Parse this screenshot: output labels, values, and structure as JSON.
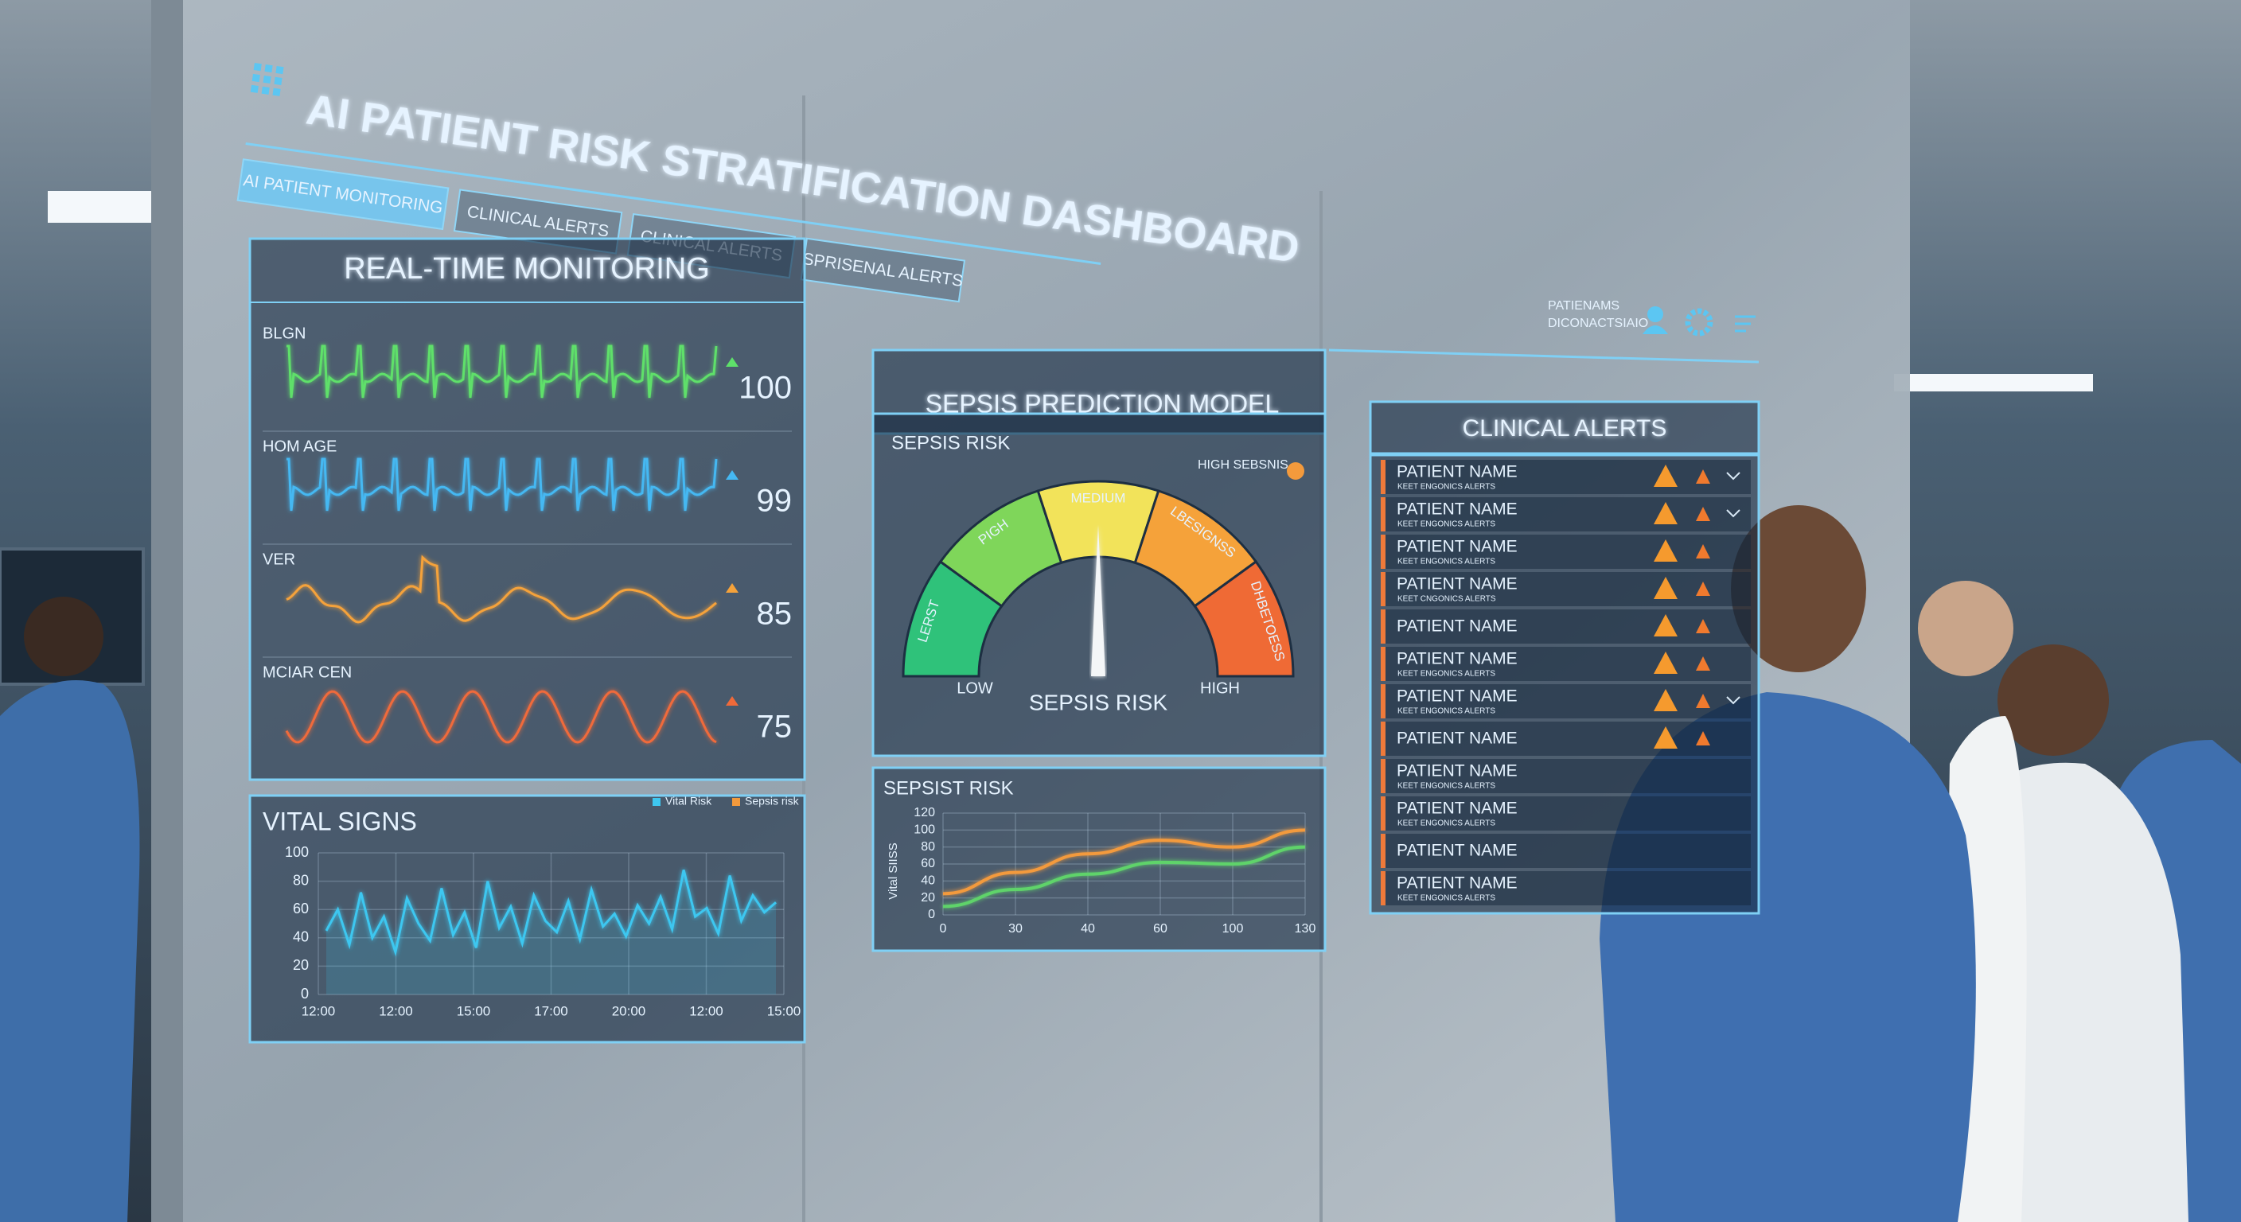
{
  "header": {
    "title": "AI PATIENT RISK STRATIFICATION DASHBOARD",
    "tabs": [
      "AI PATIENT MONITORING",
      "CLINICAL ALERTS",
      "CLINICAL ALERTS",
      "SPRISENAL ALERTS"
    ],
    "user_lines": [
      "PATIENAMS",
      "DICONACTSIAIO"
    ]
  },
  "monitoring": {
    "title": "REAL-TIME MONITORING",
    "rows": [
      {
        "label": "BLGN",
        "value": 100,
        "color": "#5ee06a"
      },
      {
        "label": "HOM AGE",
        "value": 99,
        "color": "#45b8f2"
      },
      {
        "label": "VER",
        "value": 85,
        "color": "#f5a23a"
      },
      {
        "label": "MCIAR CEN",
        "value": 75,
        "color": "#f06a3a"
      }
    ]
  },
  "vital_signs": {
    "title": "VITAL SIGNS",
    "legend": [
      {
        "name": "Vital Risk",
        "color": "#3ec7f0"
      },
      {
        "name": "Sepsis risk",
        "color": "#f39a3c"
      }
    ],
    "ylim": [
      0,
      100
    ],
    "yticks": [
      0,
      20,
      40,
      60,
      80,
      100
    ],
    "x_labels": [
      "12:00",
      "12:00",
      "15:00",
      "17:00",
      "20:00",
      "12:00",
      "15:00"
    ],
    "values": [
      45,
      60,
      35,
      72,
      40,
      55,
      30,
      68,
      50,
      38,
      75,
      42,
      58,
      33,
      80,
      47,
      62,
      36,
      70,
      52,
      44,
      66,
      39,
      74,
      48,
      57,
      41,
      63,
      50,
      69,
      46,
      88,
      55,
      61,
      43,
      84,
      52,
      70,
      58,
      65
    ]
  },
  "sepsis_model": {
    "title": "SEPSIS PREDICTION MODEL",
    "gauge": {
      "title": "SEPSIS RISK",
      "indicator": "HIGH SEBSNIS",
      "segments": [
        {
          "label": "LERST",
          "color": "#2fc27a"
        },
        {
          "label": "PIGH",
          "color": "#7fd65a"
        },
        {
          "label": "MEDIUM",
          "color": "#f2e35a"
        },
        {
          "label": "LBESIGNSS",
          "color": "#f5a23a"
        },
        {
          "label": "DHBETOESS",
          "color": "#ef6a35"
        }
      ],
      "low": "LOW",
      "high": "HIGH",
      "caption": "SEPSIS RISK"
    },
    "trend": {
      "title": "SEPSIST RISK",
      "y_label": "Vital SIISS",
      "ylim": [
        0,
        120
      ],
      "yticks": [
        0,
        20,
        40,
        60,
        80,
        100,
        120
      ],
      "x_labels": [
        "0",
        "30",
        "40",
        "60",
        "100",
        "130"
      ],
      "series": [
        {
          "color": "#f39a3c",
          "values": [
            25,
            50,
            72,
            88,
            80,
            100
          ]
        },
        {
          "color": "#5fd36b",
          "values": [
            10,
            30,
            48,
            62,
            60,
            80
          ]
        }
      ]
    }
  },
  "alerts": {
    "title": "CLINICAL ALERTS",
    "rows": [
      {
        "name": "PATIENT NAME",
        "sub": "KEET ENGONICS ALERTS"
      },
      {
        "name": "PATIENT NAME",
        "sub": "KEET ENGONICS ALERTS"
      },
      {
        "name": "PATIENT NAME",
        "sub": "KEET ENGONICS ALERTS"
      },
      {
        "name": "PATIENT NAME",
        "sub": "KEET CNGONICS ALERTS"
      },
      {
        "name": "PATIENT NAME"
      },
      {
        "name": "PATIENT NAME",
        "sub": "KEET ENGONICS ALERTS"
      },
      {
        "name": "PATIENT NAME",
        "sub": "KEET ENGONICS ALERTS"
      },
      {
        "name": "PATIENT NAME"
      },
      {
        "name": "PATIENT NAME",
        "sub": "KEET ENGONICS ALERTS"
      },
      {
        "name": "PATIENT NAME",
        "sub": "KEET ENGONICS ALERTS"
      },
      {
        "name": "PATIENT NAME"
      },
      {
        "name": "PATIENT NAME",
        "sub": "KEET ENGONICS ALERTS"
      }
    ]
  }
}
